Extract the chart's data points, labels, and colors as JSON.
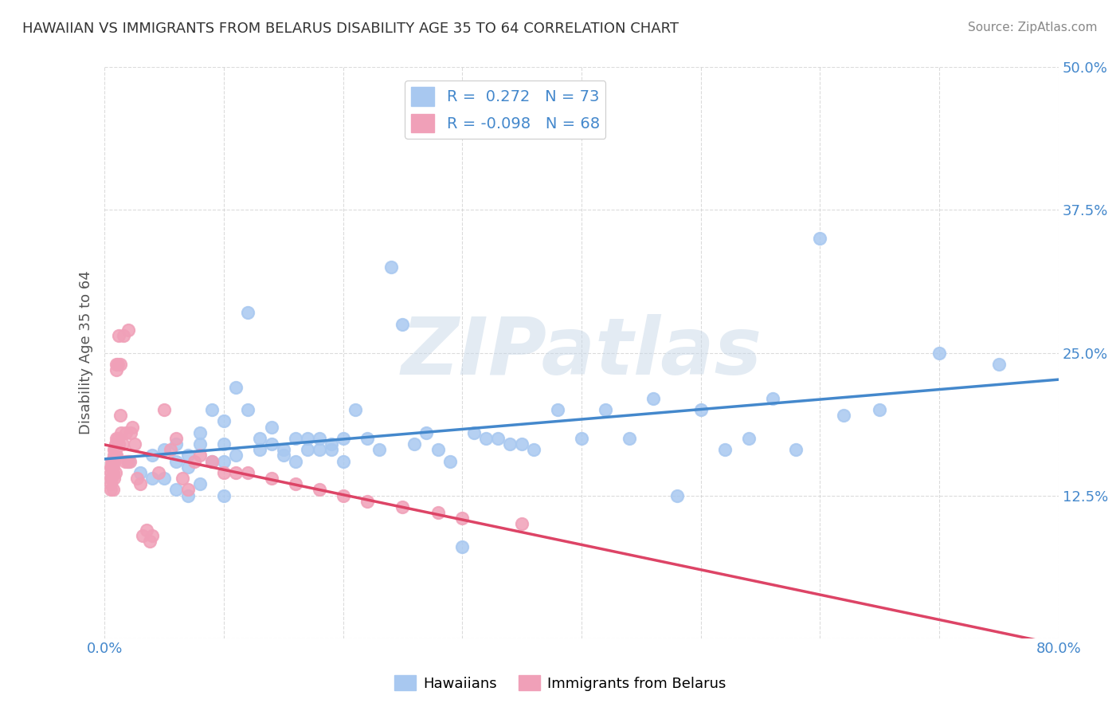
{
  "title": "HAWAIIAN VS IMMIGRANTS FROM BELARUS DISABILITY AGE 35 TO 64 CORRELATION CHART",
  "source": "Source: ZipAtlas.com",
  "xlabel": "",
  "ylabel": "Disability Age 35 to 64",
  "xlim": [
    0.0,
    0.8
  ],
  "ylim": [
    0.0,
    0.5
  ],
  "xticks": [
    0.0,
    0.1,
    0.2,
    0.3,
    0.4,
    0.5,
    0.6,
    0.7,
    0.8
  ],
  "xticklabels": [
    "0.0%",
    "",
    "",
    "",
    "",
    "",
    "",
    "",
    "80.0%"
  ],
  "yticks": [
    0.0,
    0.125,
    0.25,
    0.375,
    0.5
  ],
  "yticklabels": [
    "",
    "12.5%",
    "25.0%",
    "37.5%",
    "50.0%"
  ],
  "hawaiian_color": "#a8c8f0",
  "immigrant_color": "#f0a0b8",
  "hawaiian_line_color": "#4488cc",
  "immigrant_line_color": "#dd4466",
  "immigrant_line_dash": [
    6,
    4
  ],
  "R_hawaiian": 0.272,
  "N_hawaiian": 73,
  "R_immigrant": -0.098,
  "N_immigrant": 68,
  "watermark": "ZIPatlas",
  "legend_text_color": "#4488cc",
  "grid_color": "#cccccc",
  "background_color": "#ffffff",
  "hawaiian_x": [
    0.02,
    0.03,
    0.04,
    0.04,
    0.05,
    0.05,
    0.06,
    0.06,
    0.06,
    0.07,
    0.07,
    0.07,
    0.08,
    0.08,
    0.08,
    0.09,
    0.09,
    0.1,
    0.1,
    0.1,
    0.1,
    0.11,
    0.11,
    0.12,
    0.12,
    0.13,
    0.13,
    0.14,
    0.14,
    0.15,
    0.15,
    0.16,
    0.16,
    0.17,
    0.17,
    0.18,
    0.18,
    0.19,
    0.19,
    0.2,
    0.2,
    0.21,
    0.22,
    0.23,
    0.24,
    0.25,
    0.26,
    0.27,
    0.28,
    0.29,
    0.3,
    0.31,
    0.32,
    0.33,
    0.34,
    0.35,
    0.36,
    0.38,
    0.4,
    0.42,
    0.44,
    0.46,
    0.48,
    0.5,
    0.52,
    0.54,
    0.56,
    0.58,
    0.6,
    0.62,
    0.65,
    0.7,
    0.75
  ],
  "hawaiian_y": [
    0.155,
    0.145,
    0.16,
    0.14,
    0.165,
    0.14,
    0.17,
    0.155,
    0.13,
    0.16,
    0.15,
    0.125,
    0.18,
    0.17,
    0.135,
    0.2,
    0.155,
    0.19,
    0.17,
    0.155,
    0.125,
    0.22,
    0.16,
    0.285,
    0.2,
    0.175,
    0.165,
    0.185,
    0.17,
    0.165,
    0.16,
    0.175,
    0.155,
    0.175,
    0.165,
    0.175,
    0.165,
    0.17,
    0.165,
    0.175,
    0.155,
    0.2,
    0.175,
    0.165,
    0.325,
    0.275,
    0.17,
    0.18,
    0.165,
    0.155,
    0.08,
    0.18,
    0.175,
    0.175,
    0.17,
    0.17,
    0.165,
    0.2,
    0.175,
    0.2,
    0.175,
    0.21,
    0.125,
    0.2,
    0.165,
    0.175,
    0.21,
    0.165,
    0.35,
    0.195,
    0.2,
    0.25,
    0.24
  ],
  "immigrant_x": [
    0.005,
    0.005,
    0.005,
    0.005,
    0.005,
    0.006,
    0.006,
    0.006,
    0.007,
    0.007,
    0.007,
    0.007,
    0.008,
    0.008,
    0.008,
    0.008,
    0.009,
    0.009,
    0.009,
    0.009,
    0.01,
    0.01,
    0.01,
    0.01,
    0.011,
    0.011,
    0.012,
    0.012,
    0.013,
    0.013,
    0.014,
    0.015,
    0.016,
    0.017,
    0.018,
    0.019,
    0.02,
    0.021,
    0.022,
    0.023,
    0.025,
    0.027,
    0.03,
    0.032,
    0.035,
    0.038,
    0.04,
    0.045,
    0.05,
    0.055,
    0.06,
    0.065,
    0.07,
    0.075,
    0.08,
    0.09,
    0.1,
    0.11,
    0.12,
    0.14,
    0.16,
    0.18,
    0.2,
    0.22,
    0.25,
    0.28,
    0.3,
    0.35
  ],
  "immigrant_y": [
    0.15,
    0.145,
    0.14,
    0.135,
    0.13,
    0.155,
    0.15,
    0.14,
    0.155,
    0.15,
    0.145,
    0.13,
    0.165,
    0.16,
    0.155,
    0.14,
    0.17,
    0.165,
    0.16,
    0.145,
    0.24,
    0.235,
    0.175,
    0.16,
    0.24,
    0.175,
    0.265,
    0.17,
    0.24,
    0.195,
    0.18,
    0.17,
    0.265,
    0.155,
    0.18,
    0.155,
    0.27,
    0.155,
    0.18,
    0.185,
    0.17,
    0.14,
    0.135,
    0.09,
    0.095,
    0.085,
    0.09,
    0.145,
    0.2,
    0.165,
    0.175,
    0.14,
    0.13,
    0.155,
    0.16,
    0.155,
    0.145,
    0.145,
    0.145,
    0.14,
    0.135,
    0.13,
    0.125,
    0.12,
    0.115,
    0.11,
    0.105,
    0.1
  ]
}
